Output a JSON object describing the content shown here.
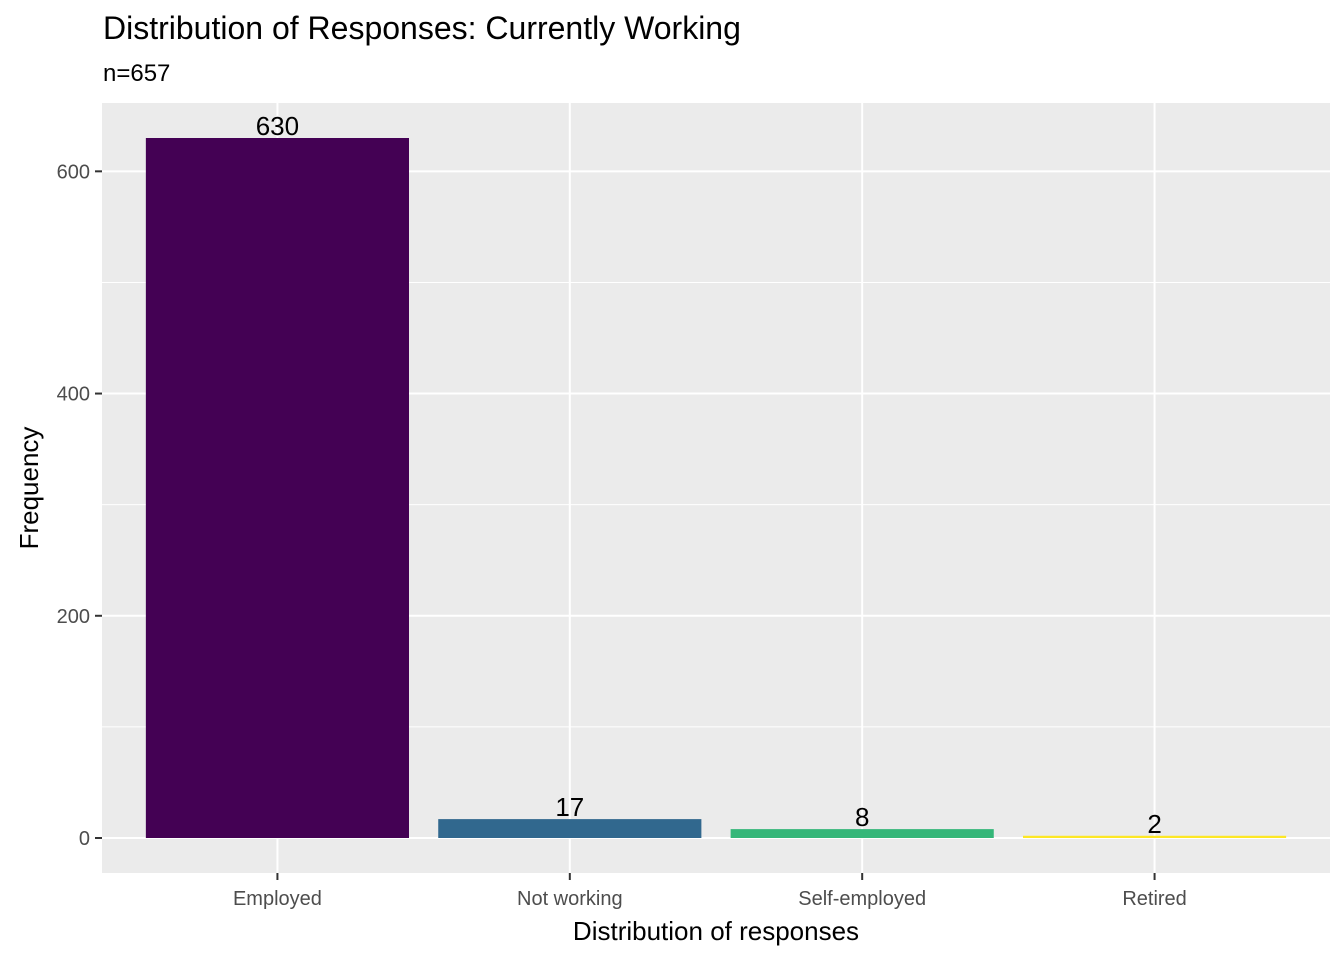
{
  "chart_data": {
    "type": "bar",
    "title": "Distribution of Responses: Currently Working",
    "subtitle": "n=657",
    "xlabel": "Distribution of responses",
    "ylabel": "Frequency",
    "categories": [
      "Employed",
      "Not working",
      "Self-employed",
      "Retired"
    ],
    "values": [
      630,
      17,
      8,
      2
    ],
    "data_labels": [
      "630",
      "17",
      "8",
      "2"
    ],
    "colors": [
      "#440154",
      "#31688E",
      "#35B779",
      "#FDE725"
    ],
    "ylim": [
      -31.5,
      661.5
    ],
    "yticks": [
      0,
      200,
      400,
      600
    ],
    "ytick_labels": [
      "0",
      "200",
      "400",
      "600"
    ],
    "grid": true,
    "panel_background": "#EBEBEB",
    "legend": "none"
  }
}
